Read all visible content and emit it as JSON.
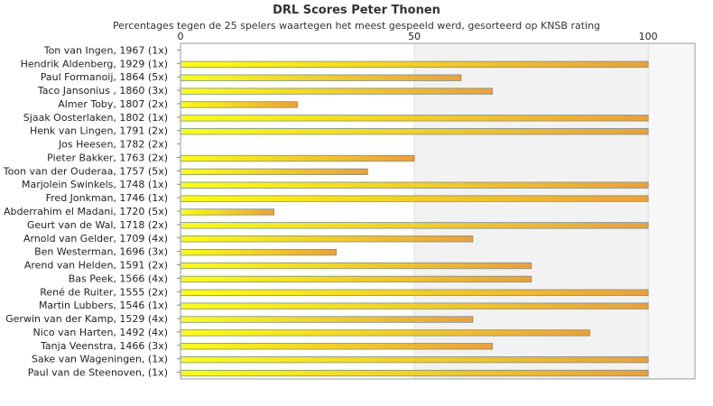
{
  "colors": {
    "bar_start": "#ffff00",
    "bar_end": "#f0a030",
    "bar_stroke": "#6a8fb0",
    "plot_bg_right": "#f2f2f2",
    "plot_border": "#999999"
  },
  "chart_data": {
    "type": "bar",
    "orientation": "horizontal",
    "title": "DRL Scores Peter Thonen",
    "subtitle": "Percentages tegen de 25 spelers waartegen het meest gespeeld werd, gesorteerd op KNSB rating",
    "xlabel": "",
    "ylabel": "",
    "xlim": [
      0,
      110
    ],
    "xticks": [
      0,
      50,
      100
    ],
    "grid": "vertical",
    "legend": "none",
    "categories": [
      "Ton van Ingen, 1967 (1x)",
      "Hendrik Aldenberg, 1929 (1x)",
      "Paul Formanoij, 1864 (5x)",
      "Taco Jansonius , 1860 (3x)",
      "Almer Toby, 1807 (2x)",
      "Sjaak Oosterlaken, 1802 (1x)",
      "Henk van Lingen, 1791 (2x)",
      "Jos Heesen, 1782 (2x)",
      "Pieter Bakker, 1763 (2x)",
      "Toon van der Ouderaa, 1757 (5x)",
      "Marjolein Swinkels, 1748 (1x)",
      "Fred Jonkman, 1746 (1x)",
      "Abderrahim el Madani, 1720 (5x)",
      "Geurt van de Wal, 1718 (2x)",
      "Arnold van Gelder, 1709 (4x)",
      "Ben Westerman, 1696 (3x)",
      "Arend van Helden, 1591 (2x)",
      "Bas Peek, 1566 (4x)",
      "René de Ruiter, 1555 (2x)",
      "Martin Lubbers, 1546 (1x)",
      "Gerwin van der Kamp, 1529 (4x)",
      "Nico van Harten, 1492 (4x)",
      "Tanja Veenstra, 1466 (3x)",
      "Sake van Wageningen,  (1x)",
      "Paul van de Steenoven,  (1x)"
    ],
    "values": [
      0,
      100,
      60,
      66.7,
      25,
      100,
      100,
      0,
      50,
      40,
      100,
      100,
      20,
      100,
      62.5,
      33.3,
      75,
      75,
      100,
      100,
      62.5,
      87.5,
      66.7,
      100,
      100
    ]
  }
}
